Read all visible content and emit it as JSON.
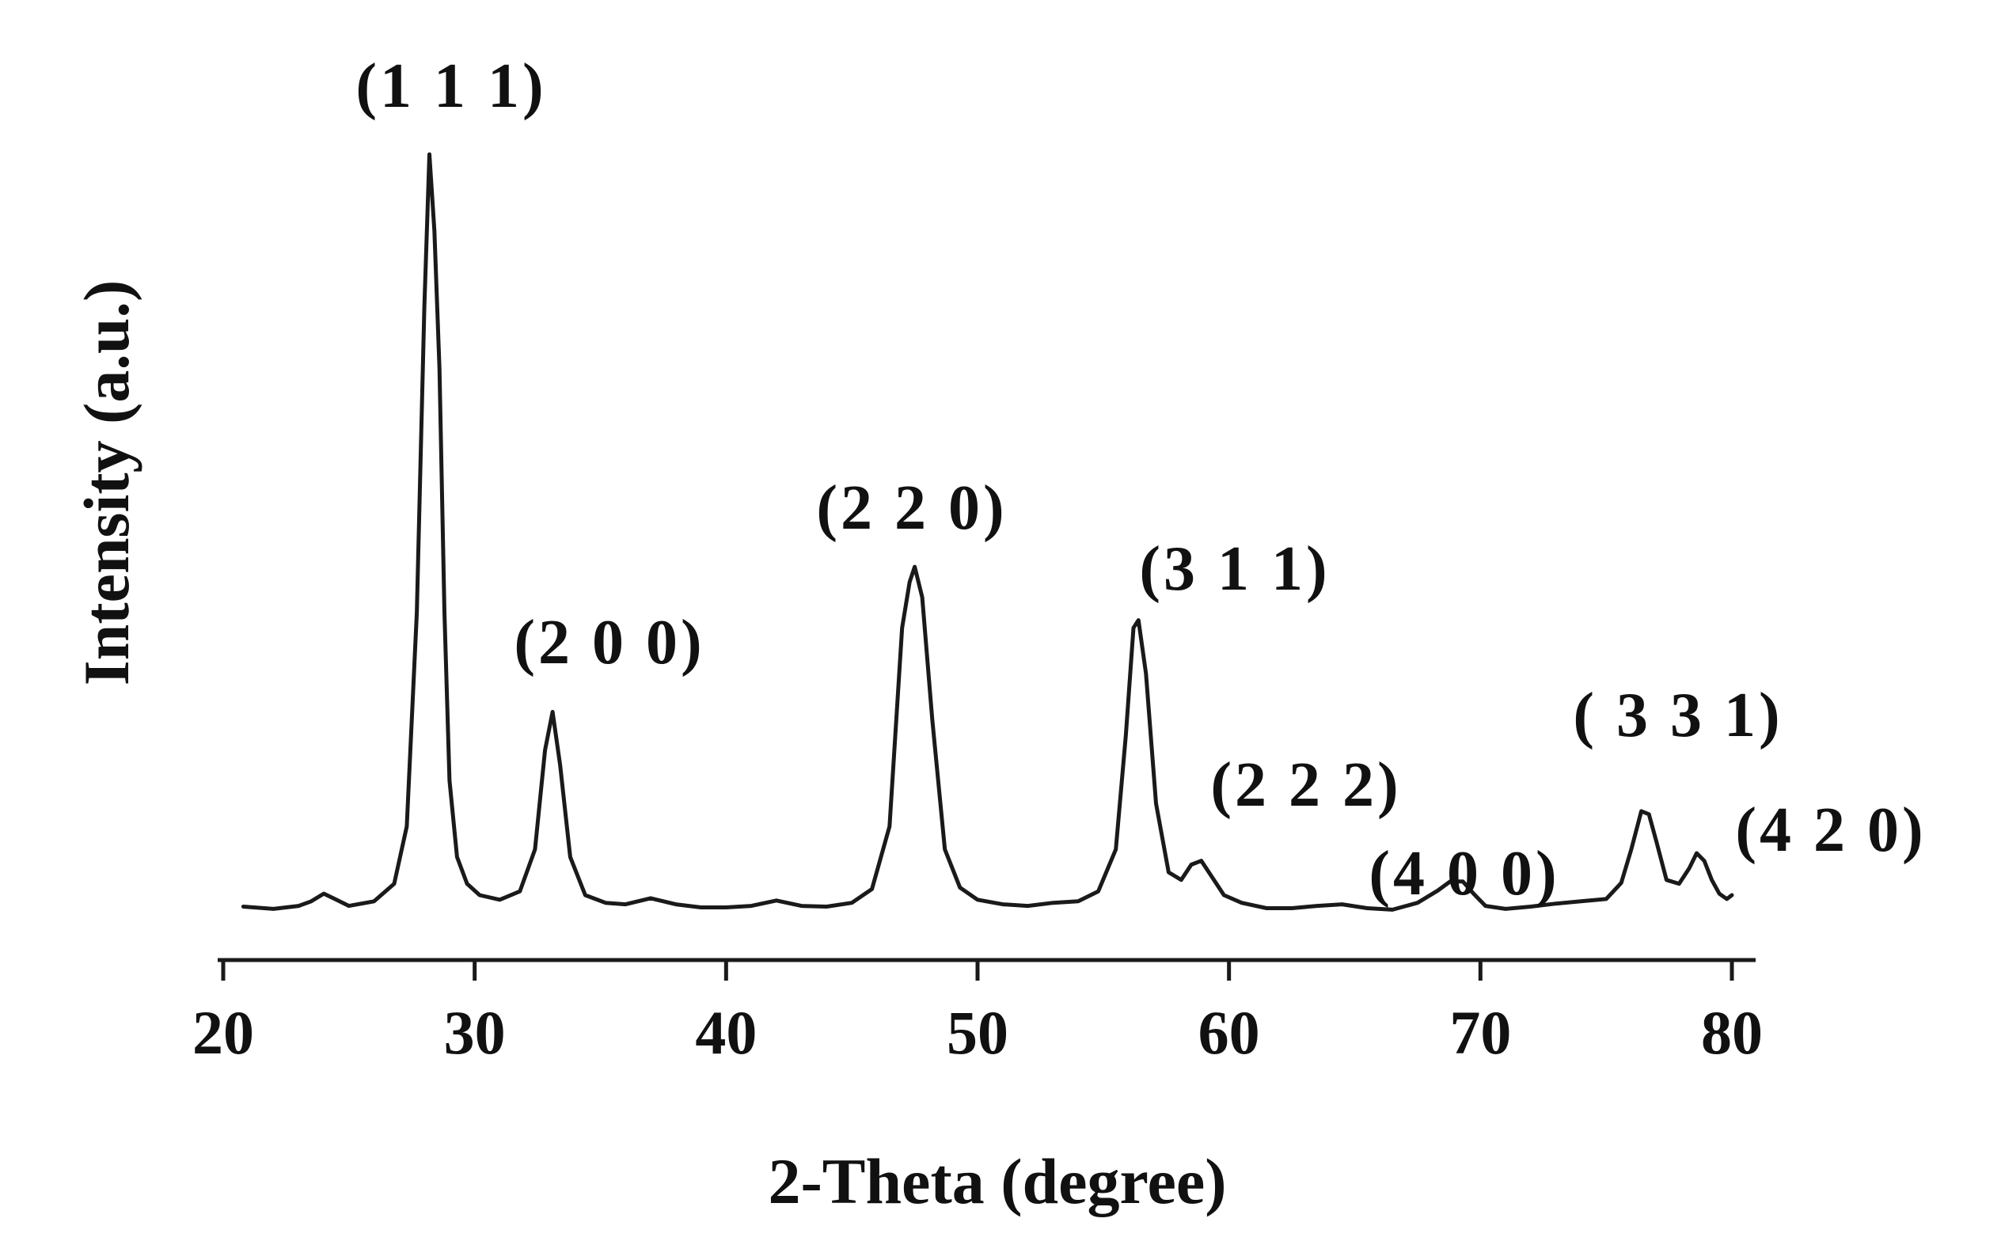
{
  "chart_data": {
    "type": "line",
    "title": "",
    "xlabel": "2-Theta (degree)",
    "ylabel": "Intensity (a.u.)",
    "xlim": [
      20,
      80
    ],
    "ylim": [
      0,
      100
    ],
    "x_ticks": [
      20,
      30,
      40,
      50,
      60,
      70,
      80
    ],
    "grid": false,
    "legend": "none",
    "line_color": "#1a1a1a",
    "series": [
      {
        "x": [
          20.8,
          22,
          23,
          23.5,
          24,
          24.5,
          25,
          26,
          26.8,
          27.3,
          27.7,
          28.0,
          28.2,
          28.4,
          28.6,
          28.8,
          29.0,
          29.3,
          29.7,
          30.2,
          31,
          31.8,
          32.4,
          32.8,
          33.1,
          33.4,
          33.8,
          34.4,
          35.2,
          36,
          37,
          38,
          39,
          40,
          41,
          42,
          43,
          44,
          45,
          45.8,
          46.5,
          47.0,
          47.3,
          47.5,
          47.8,
          48.2,
          48.7,
          49.3,
          50,
          51,
          52,
          53,
          54,
          54.8,
          55.5,
          55.9,
          56.2,
          56.4,
          56.7,
          57.1,
          57.6,
          58.1,
          58.5,
          58.9,
          59.3,
          59.8,
          60.5,
          61.5,
          62.5,
          63.5,
          64.5,
          65.5,
          66.5,
          67.5,
          68.3,
          68.8,
          69.3,
          69.7,
          70.2,
          71,
          72,
          73,
          74,
          75,
          75.6,
          76.0,
          76.4,
          76.7,
          77.0,
          77.4,
          77.9,
          78.3,
          78.6,
          78.9,
          79.2,
          79.5,
          79.8,
          80.0
        ],
        "y": [
          1.5,
          1.2,
          1.6,
          2.2,
          3.2,
          2.4,
          1.6,
          2.2,
          4.5,
          12,
          40,
          80,
          100,
          90,
          72,
          40,
          18,
          8,
          4.5,
          3,
          2.4,
          3.5,
          9,
          22,
          27,
          20,
          8,
          3,
          2,
          1.8,
          2.6,
          1.8,
          1.4,
          1.4,
          1.6,
          2.3,
          1.6,
          1.5,
          2,
          3.8,
          12,
          38,
          44,
          46,
          42,
          26,
          9,
          4,
          2.4,
          1.8,
          1.6,
          2,
          2.2,
          3.5,
          9,
          24,
          38,
          39,
          32,
          15,
          6,
          5,
          7,
          7.5,
          5.5,
          3,
          2,
          1.3,
          1.3,
          1.6,
          1.8,
          1.3,
          1.1,
          2,
          3.6,
          4.8,
          4.8,
          3.3,
          1.6,
          1.2,
          1.5,
          1.9,
          2.2,
          2.5,
          4.6,
          9,
          14,
          13.6,
          10,
          5,
          4.5,
          6.5,
          8.5,
          7.5,
          5,
          3.2,
          2.5,
          3
        ]
      }
    ],
    "annotations": [
      {
        "text": "(1 1 1)",
        "x": 28.4
      },
      {
        "text": "(2 0 0)",
        "x": 33.1
      },
      {
        "text": "(2 2 0)",
        "x": 47.5
      },
      {
        "text": "(3 1 1)",
        "x": 56.4
      },
      {
        "text": "(2 2 2)",
        "x": 58.9
      },
      {
        "text": "(4 0 0)",
        "x": 69.5
      },
      {
        "text": "( 3 3 1)",
        "x": 76.7
      },
      {
        "text": "(4 2 0)",
        "x": 79.0
      }
    ]
  }
}
